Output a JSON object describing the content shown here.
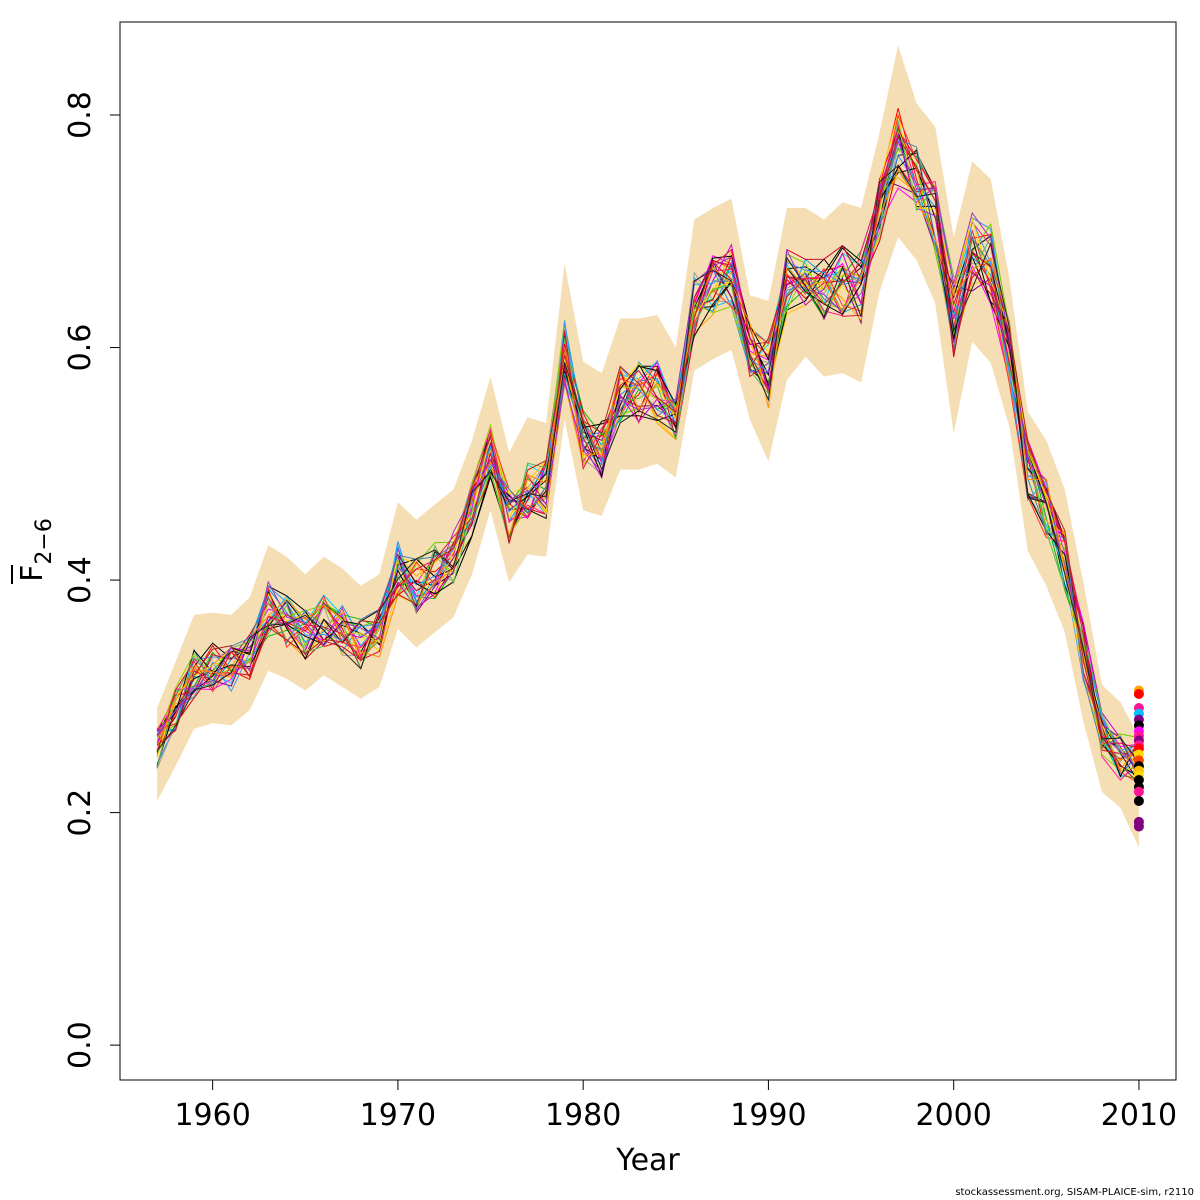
{
  "chart_data": {
    "type": "line",
    "title": "",
    "xlabel": "Year",
    "ylabel_main": "F",
    "ylabel_subscript": "2−6",
    "xlim": [
      1955,
      2012
    ],
    "ylim": [
      -0.03,
      0.88
    ],
    "xticks": [
      1960,
      1970,
      1980,
      1990,
      2000,
      2010
    ],
    "yticks": [
      0.0,
      0.2,
      0.4,
      0.6,
      0.8
    ],
    "ytick_labels": [
      "0.0",
      "0.2",
      "0.4",
      "0.6",
      "0.8"
    ],
    "band_color": "#F5DEB3",
    "band": {
      "x": [
        1957,
        1958,
        1959,
        1960,
        1961,
        1962,
        1963,
        1964,
        1965,
        1966,
        1967,
        1968,
        1969,
        1970,
        1971,
        1972,
        1973,
        1974,
        1975,
        1976,
        1977,
        1978,
        1979,
        1980,
        1981,
        1982,
        1983,
        1984,
        1985,
        1986,
        1987,
        1988,
        1989,
        1990,
        1991,
        1992,
        1993,
        1994,
        1995,
        1996,
        1997,
        1998,
        1999,
        2000,
        2001,
        2002,
        2003,
        2004,
        2005,
        2006,
        2007,
        2008,
        2009,
        2010
      ],
      "upper": [
        0.29,
        0.33,
        0.37,
        0.372,
        0.37,
        0.385,
        0.43,
        0.42,
        0.405,
        0.42,
        0.41,
        0.395,
        0.405,
        0.467,
        0.452,
        0.465,
        0.478,
        0.52,
        0.575,
        0.51,
        0.54,
        0.535,
        0.672,
        0.588,
        0.578,
        0.625,
        0.625,
        0.628,
        0.6,
        0.71,
        0.72,
        0.728,
        0.645,
        0.64,
        0.72,
        0.72,
        0.71,
        0.725,
        0.72,
        0.785,
        0.86,
        0.81,
        0.79,
        0.695,
        0.76,
        0.745,
        0.66,
        0.545,
        0.52,
        0.478,
        0.398,
        0.31,
        0.295,
        0.265
      ],
      "lower": [
        0.21,
        0.24,
        0.272,
        0.277,
        0.275,
        0.288,
        0.322,
        0.315,
        0.305,
        0.318,
        0.308,
        0.298,
        0.308,
        0.358,
        0.342,
        0.355,
        0.368,
        0.405,
        0.46,
        0.398,
        0.422,
        0.42,
        0.538,
        0.46,
        0.455,
        0.495,
        0.495,
        0.5,
        0.488,
        0.58,
        0.59,
        0.598,
        0.538,
        0.502,
        0.572,
        0.592,
        0.575,
        0.578,
        0.57,
        0.648,
        0.695,
        0.675,
        0.638,
        0.526,
        0.605,
        0.587,
        0.532,
        0.425,
        0.395,
        0.355,
        0.278,
        0.218,
        0.204,
        0.17
      ]
    },
    "years": [
      1957,
      1958,
      1959,
      1960,
      1961,
      1962,
      1963,
      1964,
      1965,
      1966,
      1967,
      1968,
      1969,
      1970,
      1971,
      1972,
      1973,
      1974,
      1975,
      1976,
      1977,
      1978,
      1979,
      1980,
      1981,
      1982,
      1983,
      1984,
      1985,
      1986,
      1987,
      1988,
      1989,
      1990,
      1991,
      1992,
      1993,
      1994,
      1995,
      1996,
      1997,
      1998,
      1999,
      2000,
      2001,
      2002,
      2003,
      2004,
      2005,
      2006,
      2007,
      2008,
      2009,
      2010
    ],
    "mean_series": [
      0.255,
      0.29,
      0.32,
      0.325,
      0.325,
      0.335,
      0.375,
      0.365,
      0.353,
      0.365,
      0.357,
      0.345,
      0.355,
      0.41,
      0.395,
      0.408,
      0.42,
      0.46,
      0.51,
      0.456,
      0.478,
      0.478,
      0.598,
      0.522,
      0.515,
      0.558,
      0.56,
      0.563,
      0.545,
      0.638,
      0.652,
      0.662,
      0.598,
      0.578,
      0.652,
      0.66,
      0.648,
      0.658,
      0.652,
      0.72,
      0.77,
      0.745,
      0.715,
      0.625,
      0.682,
      0.672,
      0.595,
      0.495,
      0.462,
      0.418,
      0.338,
      0.268,
      0.248,
      0.245
    ],
    "series_colors": [
      "#000000",
      "#FF0000",
      "#00BB00",
      "#1E90FF",
      "#00CCFF",
      "#FF00FF",
      "#FFC000",
      "#A0A0A0",
      "#000000",
      "#E00000",
      "#66CC00",
      "#00A0E0",
      "#FF1493",
      "#800080",
      "#FFA500",
      "#000000",
      "#CC0033",
      "#99CC00",
      "#3399FF",
      "#CC00CC",
      "#FFD700",
      "#000000",
      "#FF3030",
      "#55BB55",
      "#4682B4",
      "#DC143C",
      "#9932CC",
      "#FF8C00",
      "#222222",
      "#B22222"
    ],
    "end_values": [
      0.305,
      0.302,
      0.29,
      0.285,
      0.28,
      0.275,
      0.27,
      0.266,
      0.262,
      0.258,
      0.255,
      0.25,
      0.245,
      0.24,
      0.236,
      0.232,
      0.228,
      0.222,
      0.218,
      0.21,
      0.192,
      0.188
    ],
    "end_colors": [
      "#FFA500",
      "#FF0000",
      "#FF1493",
      "#00BFFF",
      "#800080",
      "#000000",
      "#FF00FF",
      "#FF1493",
      "#800080",
      "#FF1493",
      "#FF0000",
      "#FFD700",
      "#FF4500",
      "#000000",
      "#FFC000",
      "#FFD700",
      "#000000",
      "#000000",
      "#FF1493",
      "#000000",
      "#800080",
      "#800080"
    ],
    "credit": "stockassessment.org, SISAM-PLAICE-sim, r2110"
  }
}
